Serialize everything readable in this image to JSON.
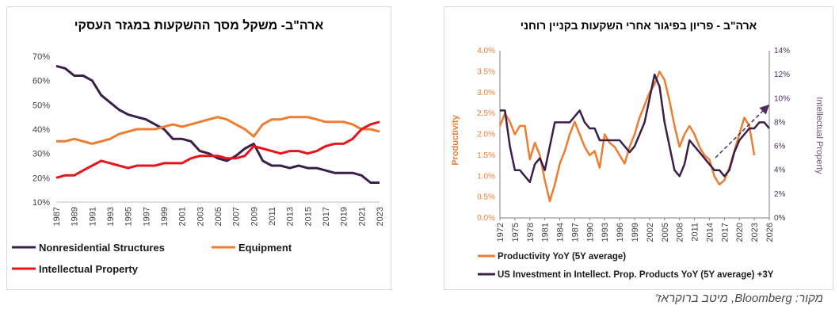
{
  "chart_data": [
    {
      "type": "line",
      "title": "ארה\"ב- משקל מסך ההשקעות במגזר העסקי",
      "x_tick_labels": [
        "1987",
        "1989",
        "1991",
        "1993",
        "1995",
        "1997",
        "1999",
        "2001",
        "2003",
        "2005",
        "2007",
        "2009",
        "2011",
        "2013",
        "2015",
        "2017",
        "2019",
        "2021",
        "2023"
      ],
      "y_tick_labels": [
        "10%",
        "20%",
        "30%",
        "40%",
        "50%",
        "60%",
        "70%"
      ],
      "xlim": [
        1987,
        2023
      ],
      "ylim": [
        10,
        70
      ],
      "legend_position": "bottom",
      "series": [
        {
          "name": "Nonresidential Structures",
          "color": "#3B1F4B",
          "x": [
            1987,
            1988,
            1989,
            1990,
            1991,
            1992,
            1993,
            1994,
            1995,
            1996,
            1997,
            1998,
            1999,
            2000,
            2001,
            2002,
            2003,
            2004,
            2005,
            2006,
            2007,
            2008,
            2009,
            2010,
            2011,
            2012,
            2013,
            2014,
            2015,
            2016,
            2017,
            2018,
            2019,
            2020,
            2021,
            2022,
            2023
          ],
          "y": [
            66,
            65,
            62,
            62,
            60,
            54,
            51,
            48,
            46,
            45,
            44,
            42,
            40,
            36,
            36,
            35,
            31,
            30,
            28,
            27,
            29,
            32,
            34,
            27,
            25,
            25,
            24,
            25,
            24,
            24,
            23,
            22,
            22,
            22,
            21,
            18,
            18
          ]
        },
        {
          "name": "Equipment",
          "color": "#ED7D31",
          "x": [
            1987,
            1988,
            1989,
            1990,
            1991,
            1992,
            1993,
            1994,
            1995,
            1996,
            1997,
            1998,
            1999,
            2000,
            2001,
            2002,
            2003,
            2004,
            2005,
            2006,
            2007,
            2008,
            2009,
            2010,
            2011,
            2012,
            2013,
            2014,
            2015,
            2016,
            2017,
            2018,
            2019,
            2020,
            2021,
            2022,
            2023
          ],
          "y": [
            35,
            35,
            36,
            35,
            34,
            35,
            36,
            38,
            39,
            40,
            40,
            40,
            41,
            42,
            41,
            42,
            43,
            44,
            45,
            44,
            42,
            40,
            37,
            42,
            44,
            44,
            45,
            45,
            45,
            44,
            43,
            43,
            43,
            42,
            40,
            40,
            39
          ]
        },
        {
          "name": "Intellectual Property",
          "color": "#E8141A",
          "x": [
            1987,
            1988,
            1989,
            1990,
            1991,
            1992,
            1993,
            1994,
            1995,
            1996,
            1997,
            1998,
            1999,
            2000,
            2001,
            2002,
            2003,
            2004,
            2005,
            2006,
            2007,
            2008,
            2009,
            2010,
            2011,
            2012,
            2013,
            2014,
            2015,
            2016,
            2017,
            2018,
            2019,
            2020,
            2021,
            2022,
            2023
          ],
          "y": [
            20,
            21,
            21,
            23,
            25,
            27,
            26,
            25,
            24,
            25,
            25,
            25,
            26,
            26,
            26,
            28,
            29,
            29,
            29,
            28,
            28,
            29,
            33,
            32,
            31,
            30,
            31,
            31,
            30,
            31,
            33,
            34,
            34,
            36,
            40,
            42,
            43
          ]
        }
      ]
    },
    {
      "type": "line",
      "title": "ארה\"ב - פריון בפיגור אחרי השקעות בקניין רוחני",
      "ylabel": "Productivity",
      "y2label": "Intellectual Property",
      "x_tick_labels": [
        "1972",
        "1975",
        "1978",
        "1981",
        "1984",
        "1987",
        "1990",
        "1993",
        "1996",
        "1999",
        "2002",
        "2005",
        "2008",
        "2011",
        "2014",
        "2017",
        "2020",
        "2023",
        "2026"
      ],
      "y_tick_labels": [
        "0.0%",
        "0.5%",
        "1.0%",
        "1.5%",
        "2.0%",
        "2.5%",
        "3.0%",
        "3.5%",
        "4.0%"
      ],
      "y2_tick_labels": [
        "0%",
        "2%",
        "4%",
        "6%",
        "8%",
        "10%",
        "12%",
        "14%"
      ],
      "xlim": [
        1972,
        2026
      ],
      "ylim": [
        0,
        4
      ],
      "y2lim": [
        0,
        14
      ],
      "legend_position": "bottom",
      "series": [
        {
          "name": "Productivity YoY (5Y average)",
          "color": "#ED7D31",
          "axis": "left",
          "x": [
            1972,
            1973,
            1974,
            1975,
            1976,
            1977,
            1978,
            1979,
            1980,
            1981,
            1982,
            1983,
            1984,
            1985,
            1986,
            1987,
            1988,
            1989,
            1990,
            1991,
            1992,
            1993,
            1994,
            1995,
            1996,
            1997,
            1998,
            1999,
            2000,
            2001,
            2002,
            2003,
            2004,
            2005,
            2006,
            2007,
            2008,
            2009,
            2010,
            2011,
            2012,
            2013,
            2014,
            2015,
            2016,
            2017,
            2018,
            2019,
            2020,
            2021,
            2022,
            2023
          ],
          "y": [
            2.2,
            2.5,
            2.3,
            2.0,
            2.2,
            2.2,
            1.4,
            1.8,
            1.5,
            0.9,
            0.4,
            0.8,
            1.3,
            1.6,
            2.0,
            2.3,
            2.0,
            1.7,
            1.5,
            1.6,
            1.2,
            2.0,
            1.8,
            1.7,
            1.5,
            1.3,
            1.7,
            2.0,
            2.4,
            2.7,
            3.0,
            3.2,
            3.5,
            3.3,
            2.8,
            2.2,
            1.7,
            2.0,
            2.2,
            2.0,
            1.7,
            1.5,
            1.4,
            1.0,
            0.8,
            0.9,
            1.2,
            1.6,
            2.0,
            2.4,
            2.2,
            1.5
          ]
        },
        {
          "name": "US Investment in Intellect. Prop. Products YoY (5Y average) +3Y",
          "color": "#3B1F4B",
          "axis": "right",
          "x": [
            1972,
            1973,
            1974,
            1975,
            1976,
            1977,
            1978,
            1979,
            1980,
            1981,
            1982,
            1983,
            1984,
            1985,
            1986,
            1987,
            1988,
            1989,
            1990,
            1991,
            1992,
            1993,
            1994,
            1995,
            1996,
            1997,
            1998,
            1999,
            2000,
            2001,
            2002,
            2003,
            2004,
            2005,
            2006,
            2007,
            2008,
            2009,
            2010,
            2011,
            2012,
            2013,
            2014,
            2015,
            2016,
            2017,
            2018,
            2019,
            2020,
            2021,
            2022,
            2023,
            2024,
            2025,
            2026
          ],
          "y": [
            9.0,
            9.0,
            6.0,
            4.0,
            4.0,
            3.5,
            3.0,
            4.5,
            5.0,
            4.0,
            6.0,
            8.0,
            8.0,
            8.0,
            8.0,
            8.5,
            9.0,
            8.0,
            7.5,
            7.5,
            6.5,
            6.5,
            6.5,
            6.5,
            6.5,
            6.0,
            5.5,
            6.0,
            7.0,
            8.0,
            10.0,
            12.0,
            11.0,
            8.0,
            6.0,
            4.0,
            3.5,
            4.5,
            6.5,
            6.0,
            5.5,
            5.0,
            4.5,
            4.0,
            4.0,
            3.5,
            4.0,
            5.5,
            6.5,
            7.0,
            7.5,
            7.5,
            8.0,
            8.0,
            7.5
          ]
        }
      ]
    }
  ],
  "legend_left": {
    "structures": "Nonresidential Structures",
    "equipment": "Equipment",
    "ip": "Intellectual Property"
  },
  "legend_right": {
    "productivity": "Productivity YoY (5Y average)",
    "ip": "US Investment in Intellect. Prop. Products YoY (5Y average) +3Y"
  },
  "source_text": "מקור: Bloomberg, מיטב ברוקראז'"
}
